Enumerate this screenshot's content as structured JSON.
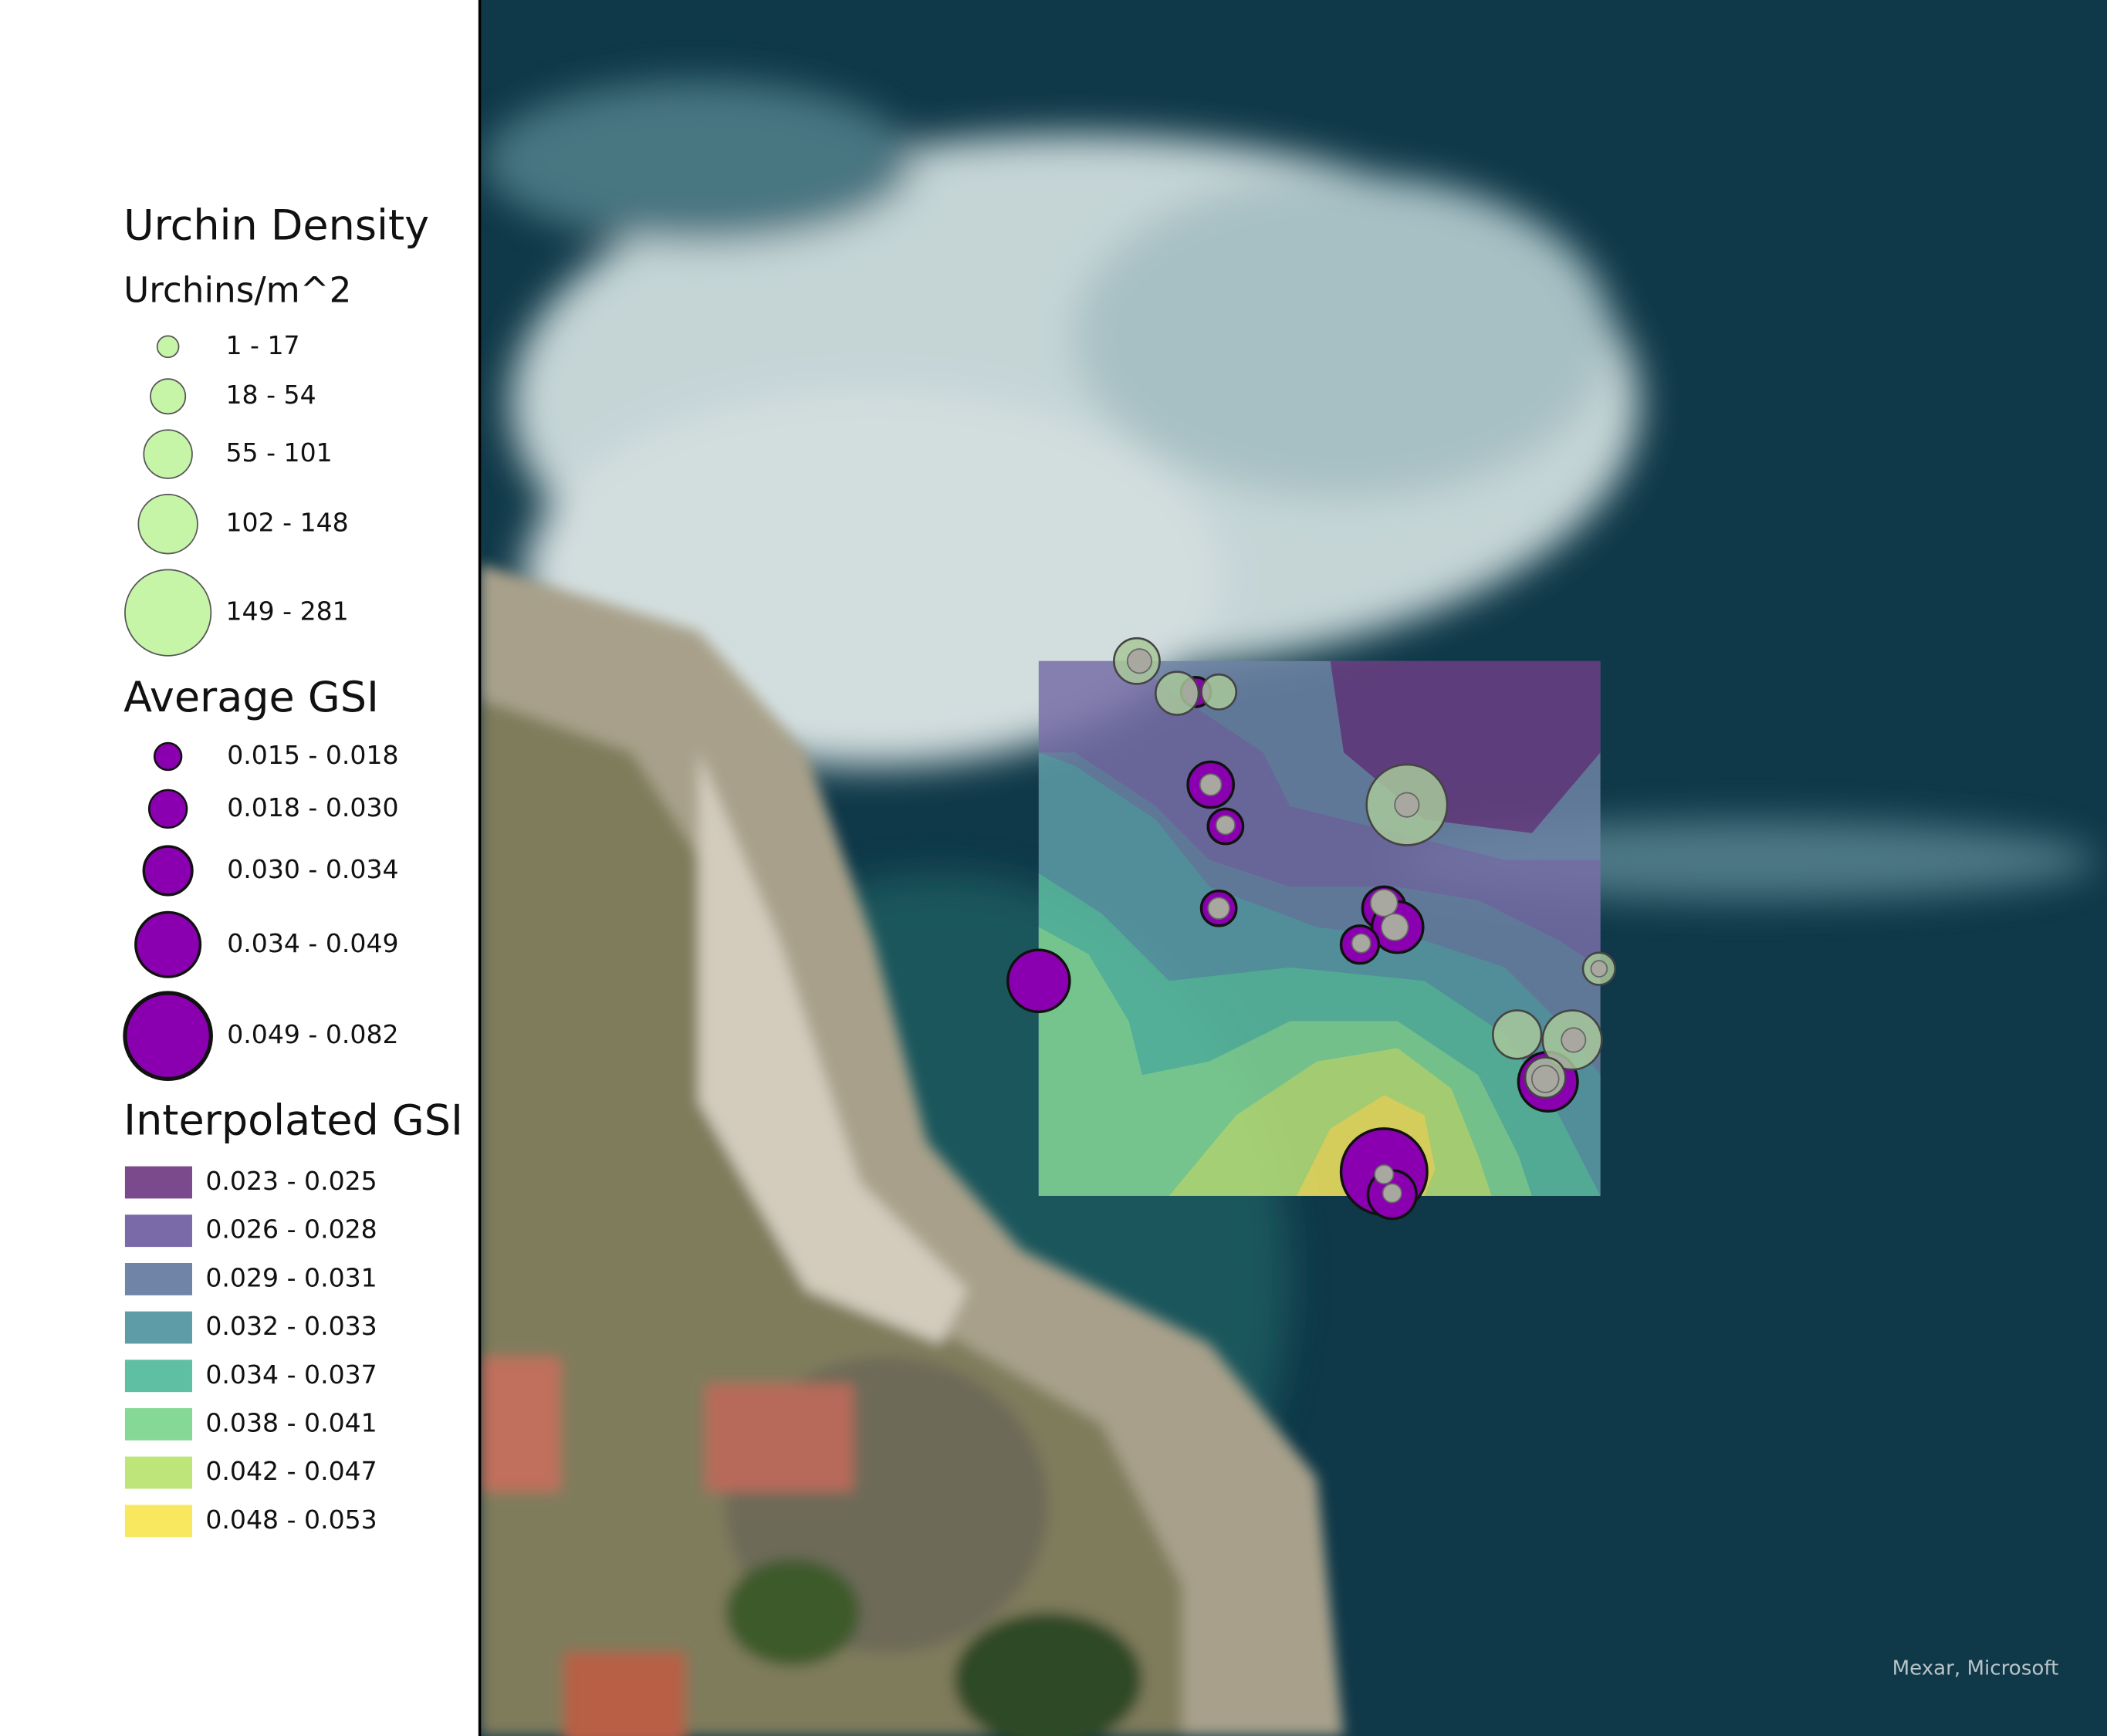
{
  "legend": {
    "urchin_density": {
      "title": "Urchin Density",
      "subtitle": "Urchins/m^2",
      "classes": [
        "1 - 17",
        "18 - 54",
        "55 - 101",
        "102 - 148",
        "149 - 281"
      ],
      "color": "#c6f5a8"
    },
    "average_gsi": {
      "title": "Average GSI",
      "classes": [
        "0.015 - 0.018",
        "0.018 - 0.030",
        "0.030 - 0.034",
        "0.034 - 0.049",
        "0.049 - 0.082"
      ],
      "color": "#8a00b0"
    },
    "interpolated_gsi": {
      "title": "Interpolated GSI",
      "classes": [
        {
          "label": "0.023 - 0.025",
          "color": "#7b4a8c"
        },
        {
          "label": "0.026 - 0.028",
          "color": "#7a6aa8"
        },
        {
          "label": "0.029 - 0.031",
          "color": "#6f84a6"
        },
        {
          "label": "0.032 - 0.033",
          "color": "#5e9da8"
        },
        {
          "label": "0.034 - 0.037",
          "color": "#5ebfa2"
        },
        {
          "label": "0.038 - 0.041",
          "color": "#86d896"
        },
        {
          "label": "0.042 - 0.047",
          "color": "#bde57a"
        },
        {
          "label": "0.048 - 0.053",
          "color": "#f7e860"
        }
      ]
    }
  },
  "map": {
    "attribution": "Mexar, Microsoft"
  }
}
